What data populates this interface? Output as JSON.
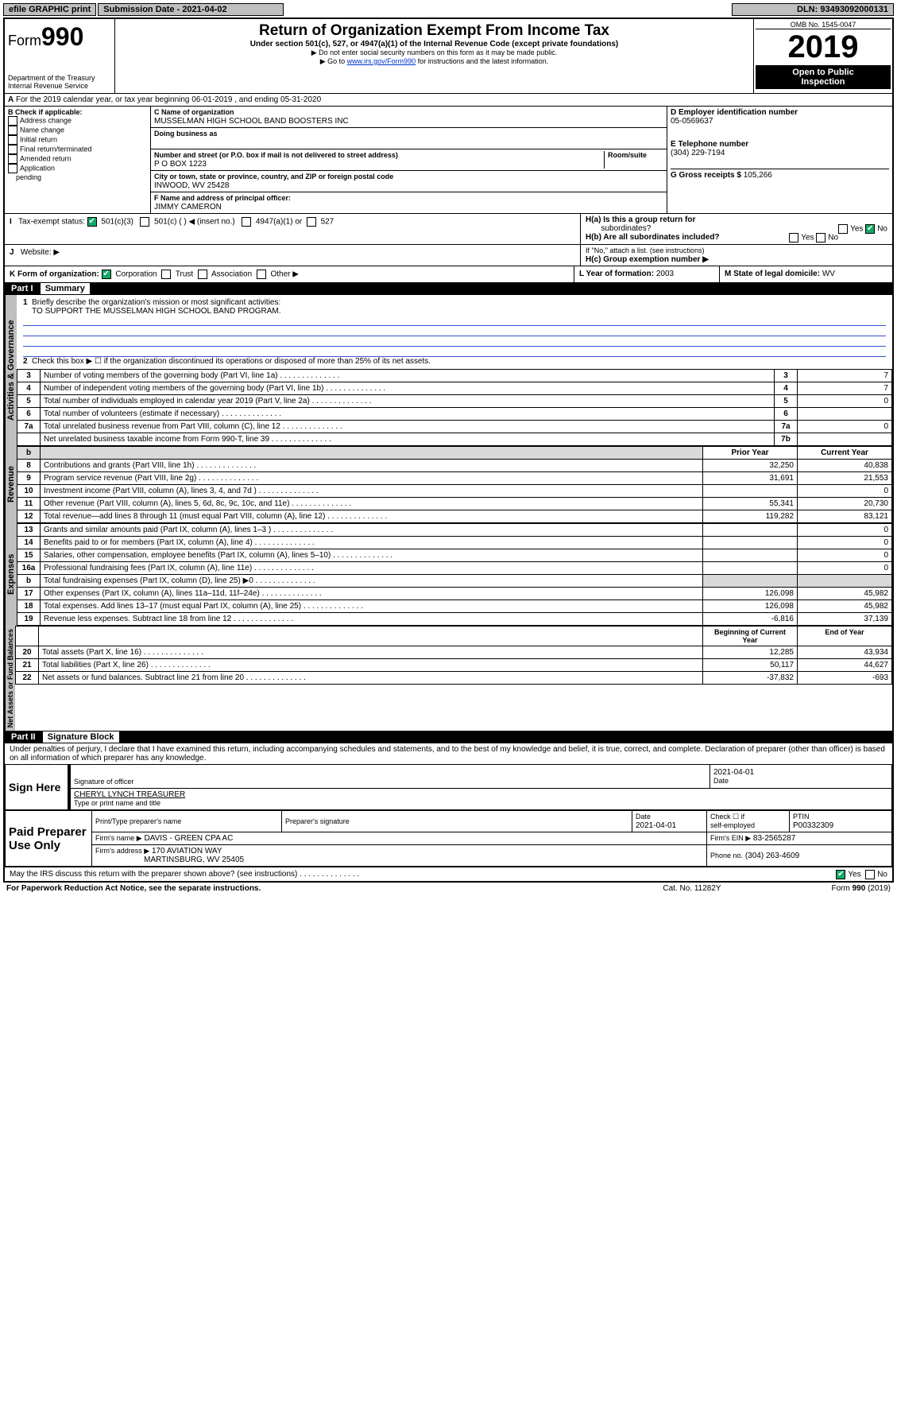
{
  "topbar": {
    "efile": "efile GRAPHIC print",
    "subLabel": "Submission Date - 2021-04-02",
    "dln": "DLN: 93493092000131"
  },
  "header": {
    "formWord": "Form",
    "form": "990",
    "title": "Return of Organization Exempt From Income Tax",
    "sub1": "Under section 501(c), 527, or 4947(a)(1) of the Internal Revenue Code (except private foundations)",
    "sub2": "▶ Do not enter social security numbers on this form as it may be made public.",
    "sub3_pre": "▶ Go to ",
    "sub3_link": "www.irs.gov/Form990",
    "sub3_post": " for instructions and the latest information.",
    "dept": "Department of the Treasury",
    "irs": "Internal Revenue Service",
    "omb": "OMB No. 1545-0047",
    "year": "2019",
    "open": "Open to Public",
    "insp": "Inspection"
  },
  "A": {
    "text": "For the 2019 calendar year, or tax year beginning 06-01-2019   , and ending 05-31-2020"
  },
  "B": {
    "title": "B Check if applicable:",
    "items": [
      "Address change",
      "Name change",
      "Initial return",
      "Final return/terminated",
      "Amended return",
      "Application pending"
    ],
    "app": "Application",
    "pending": "pending"
  },
  "C": {
    "nameLbl": "C Name of organization",
    "name": "MUSSELMAN HIGH SCHOOL BAND BOOSTERS INC",
    "dbaLbl": "Doing business as",
    "streetLbl": "Number and street (or P.O. box if mail is not delivered to street address)",
    "roomLbl": "Room/suite",
    "street": "P O BOX 1223",
    "cityLbl": "City or town, state or province, country, and ZIP or foreign postal code",
    "city": "INWOOD, WV  25428",
    "offLbl": "F  Name and address of principal officer:",
    "off": "JIMMY CAMERON"
  },
  "D": {
    "lbl": "D Employer identification number",
    "val": "05-0569637"
  },
  "E": {
    "lbl": "E Telephone number",
    "val": "(304) 229-7194"
  },
  "G": {
    "lbl": "G Gross receipts $",
    "val": "105,266"
  },
  "H": {
    "a": "H(a)  Is this a group return for",
    "a2": "subordinates?",
    "b": "H(b)  Are all subordinates included?",
    "bnote": "If \"No,\" attach a list. (see instructions)",
    "c": "H(c)  Group exemption number ▶",
    "yes": "Yes",
    "no": "No"
  },
  "I": {
    "lbl": "Tax-exempt status:",
    "c3": "501(c)(3)",
    "c": "501(c) (  ) ◀ (insert no.)",
    "a1": "4947(a)(1) or",
    "527": "527"
  },
  "J": {
    "lbl": "Website: ▶"
  },
  "K": {
    "lbl": "K Form of organization:",
    "corp": "Corporation",
    "trust": "Trust",
    "assoc": "Association",
    "other": "Other ▶"
  },
  "L": {
    "lbl": "L Year of formation:",
    "val": "2003"
  },
  "M": {
    "lbl": "M State of legal domicile:",
    "val": "WV"
  },
  "partI": {
    "title": "Part I",
    "sub": "Summary"
  },
  "summary": {
    "l1": "Briefly describe the organization's mission or most significant activities:",
    "l1b": "TO SUPPORT THE MUSSELMAN HIGH SCHOOL BAND PROGRAM.",
    "l2": "Check this box ▶ ☐  if the organization discontinued its operations or disposed of more than 25% of its net assets.",
    "rows": [
      {
        "n": "3",
        "t": "Number of voting members of the governing body (Part VI, line 1a)",
        "rn": "3",
        "v": "7"
      },
      {
        "n": "4",
        "t": "Number of independent voting members of the governing body (Part VI, line 1b)",
        "rn": "4",
        "v": "7"
      },
      {
        "n": "5",
        "t": "Total number of individuals employed in calendar year 2019 (Part V, line 2a)",
        "rn": "5",
        "v": "0"
      },
      {
        "n": "6",
        "t": "Total number of volunteers (estimate if necessary)",
        "rn": "6",
        "v": ""
      },
      {
        "n": "7a",
        "t": "Total unrelated business revenue from Part VIII, column (C), line 12",
        "rn": "7a",
        "v": "0"
      },
      {
        "n": "",
        "t": "Net unrelated business taxable income from Form 990-T, line 39",
        "rn": "7b",
        "v": ""
      }
    ],
    "hdrPrior": "Prior Year",
    "hdrCurr": "Current Year",
    "rev": [
      {
        "n": "8",
        "t": "Contributions and grants (Part VIII, line 1h)",
        "p": "32,250",
        "c": "40,838"
      },
      {
        "n": "9",
        "t": "Program service revenue (Part VIII, line 2g)",
        "p": "31,691",
        "c": "21,553"
      },
      {
        "n": "10",
        "t": "Investment income (Part VIII, column (A), lines 3, 4, and 7d )",
        "p": "",
        "c": "0"
      },
      {
        "n": "11",
        "t": "Other revenue (Part VIII, column (A), lines 5, 6d, 8c, 9c, 10c, and 11e)",
        "p": "55,341",
        "c": "20,730"
      },
      {
        "n": "12",
        "t": "Total revenue—add lines 8 through 11 (must equal Part VIII, column (A), line 12)",
        "p": "119,282",
        "c": "83,121"
      }
    ],
    "exp": [
      {
        "n": "13",
        "t": "Grants and similar amounts paid (Part IX, column (A), lines 1–3 )",
        "p": "",
        "c": "0"
      },
      {
        "n": "14",
        "t": "Benefits paid to or for members (Part IX, column (A), line 4)",
        "p": "",
        "c": "0"
      },
      {
        "n": "15",
        "t": "Salaries, other compensation, employee benefits (Part IX, column (A), lines 5–10)",
        "p": "",
        "c": "0"
      },
      {
        "n": "16a",
        "t": "Professional fundraising fees (Part IX, column (A), line 11e)",
        "p": "",
        "c": "0"
      },
      {
        "n": "b",
        "t": "Total fundraising expenses (Part IX, column (D), line 25) ▶0",
        "p": "shade",
        "c": "shade"
      },
      {
        "n": "17",
        "t": "Other expenses (Part IX, column (A), lines 11a–11d, 11f–24e)",
        "p": "126,098",
        "c": "45,982"
      },
      {
        "n": "18",
        "t": "Total expenses. Add lines 13–17 (must equal Part IX, column (A), line 25)",
        "p": "126,098",
        "c": "45,982"
      },
      {
        "n": "19",
        "t": "Revenue less expenses. Subtract line 18 from line 12",
        "p": "-6,816",
        "c": "37,139"
      }
    ],
    "balhdr1": "Beginning of Current Year",
    "balhdr2": "End of Year",
    "bal": [
      {
        "n": "20",
        "t": "Total assets (Part X, line 16)",
        "p": "12,285",
        "c": "43,934"
      },
      {
        "n": "21",
        "t": "Total liabilities (Part X, line 26)",
        "p": "50,117",
        "c": "44,627"
      },
      {
        "n": "22",
        "t": "Net assets or fund balances. Subtract line 21 from line 20",
        "p": "-37,832",
        "c": "-693"
      }
    ]
  },
  "tabs": {
    "gov": "Activities & Governance",
    "rev": "Revenue",
    "exp": "Expenses",
    "bal": "Net Assets or Fund Balances"
  },
  "partII": {
    "title": "Part II",
    "sub": "Signature Block",
    "decl": "Under penalties of perjury, I declare that I have examined this return, including accompanying schedules and statements, and to the best of my knowledge and belief, it is true, correct, and complete. Declaration of preparer (other than officer) is based on all information of which preparer has any knowledge."
  },
  "sign": {
    "here": "Sign Here",
    "sigoff": "Signature of officer",
    "date": "Date",
    "dateval": "2021-04-01",
    "typed": "CHERYL LYNCH TREASURER",
    "typedlbl": "Type or print name and title"
  },
  "prep": {
    "title": "Paid Preparer Use Only",
    "col1": "Print/Type preparer's name",
    "col2": "Preparer's signature",
    "col3": "Date",
    "col4pre": "Check ☐ if",
    "col4": "self-employed",
    "col5": "PTIN",
    "dateval": "2021-04-01",
    "ptin": "P00332309",
    "firmname": "Firm's name   ▶",
    "firm": "DAVIS - GREEN CPA AC",
    "ein": "Firm's EIN ▶",
    "einval": "83-2565287",
    "firmaddr": "Firm's address ▶",
    "addr1": "170 AVIATION WAY",
    "addr2": "MARTINSBURG, WV  25405",
    "phone": "Phone no.",
    "phoneval": "(304) 263-4609"
  },
  "footer": {
    "q": "May the IRS discuss this return with the preparer shown above? (see instructions)",
    "yes": "Yes",
    "no": "No",
    "pra": "For Paperwork Reduction Act Notice, see the separate instructions.",
    "cat": "Cat. No. 11282Y",
    "form": "Form 990 (2019)"
  }
}
